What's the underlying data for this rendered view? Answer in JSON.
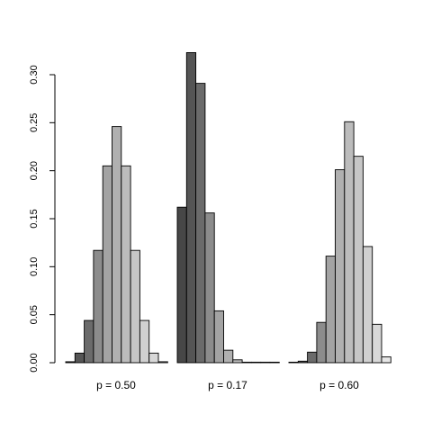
{
  "chart_data": {
    "type": "bar",
    "title": "",
    "xlabel": "",
    "ylabel": "",
    "ylim": [
      0,
      0.3
    ],
    "yticks": [
      "0.00",
      "0.05",
      "0.10",
      "0.15",
      "0.20",
      "0.25",
      "0.30"
    ],
    "grid": false,
    "legend": "none",
    "bins_per_group": 11,
    "bin_fills": [
      "#474747",
      "#555555",
      "#6b6b6b",
      "#8c8c8c",
      "#a3a3a3",
      "#b0b0b0",
      "#bcbcbc",
      "#c6c6c6",
      "#d0d0d0",
      "#d8d8d8",
      "#e6e6e6"
    ],
    "groups": [
      {
        "label": "p = 0.50",
        "values": [
          0.001,
          0.01,
          0.044,
          0.117,
          0.205,
          0.246,
          0.205,
          0.117,
          0.044,
          0.01,
          0.001
        ]
      },
      {
        "label": "p = 0.17",
        "values": [
          0.162,
          0.323,
          0.291,
          0.156,
          0.054,
          0.013,
          0.003,
          0.0005,
          0.0003,
          0.0002,
          0.0001
        ]
      },
      {
        "label": "p = 0.60",
        "values": [
          0.0001,
          0.0016,
          0.011,
          0.042,
          0.111,
          0.201,
          0.251,
          0.215,
          0.121,
          0.04,
          0.006
        ]
      }
    ]
  }
}
